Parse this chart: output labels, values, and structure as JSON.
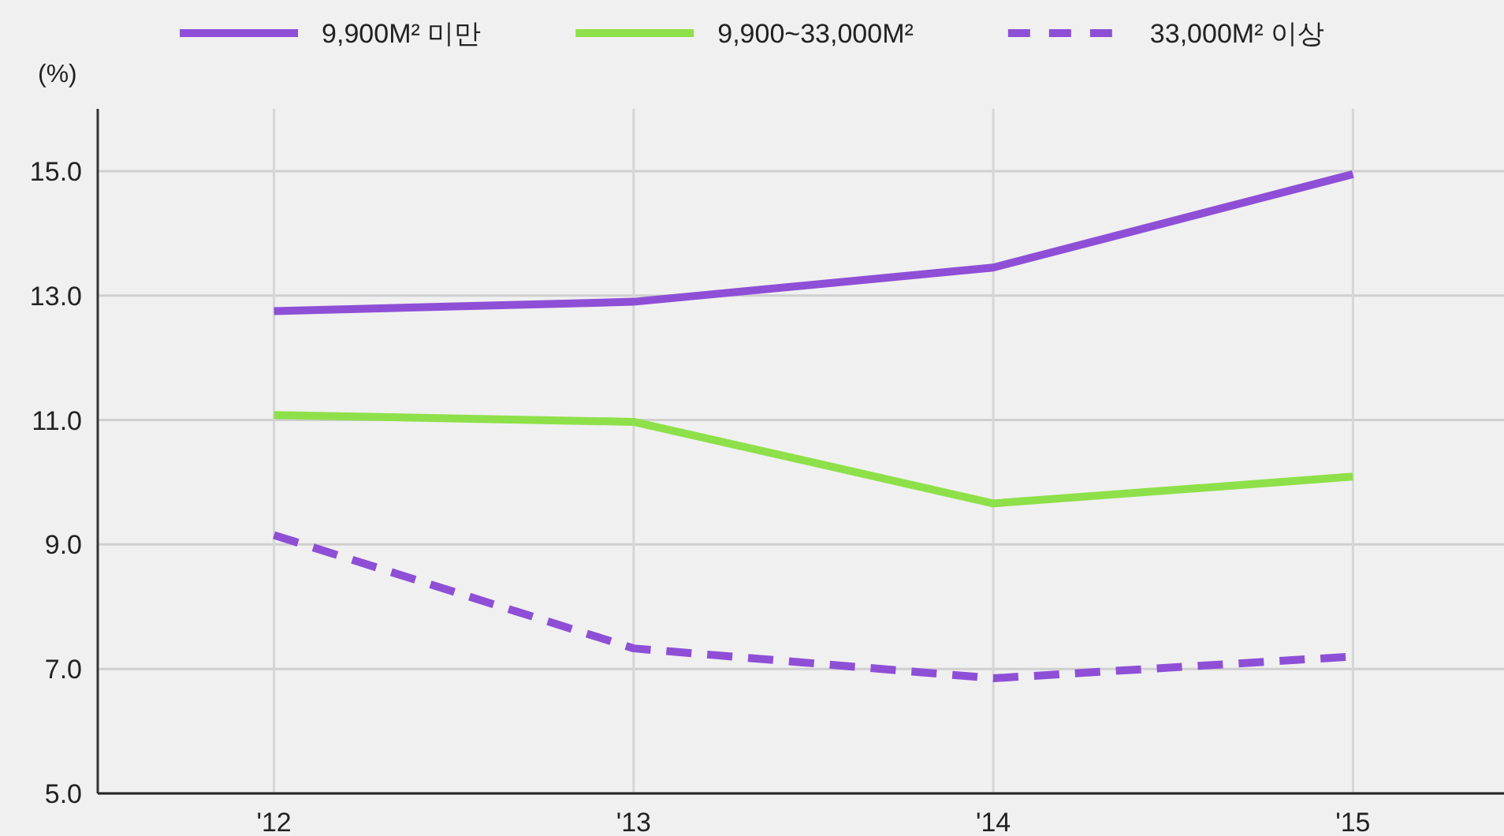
{
  "chart_data": {
    "type": "line",
    "ylabel": "(%)",
    "categories": [
      "'12",
      "'13",
      "'14",
      "'15"
    ],
    "series": [
      {
        "name": "9,900M² 미만",
        "color": "#8e4fd6",
        "line_style": "solid",
        "values": [
          12.75,
          12.9,
          13.45,
          14.95
        ]
      },
      {
        "name": "9,900~33,000M²",
        "color": "#8ee04a",
        "line_style": "solid",
        "values": [
          11.08,
          10.97,
          9.66,
          10.09
        ]
      },
      {
        "name": "33,000M² 이상",
        "color": "#8e4fd6",
        "line_style": "dashed",
        "values": [
          9.15,
          7.33,
          6.85,
          7.2
        ]
      }
    ],
    "ylim": [
      5,
      16
    ],
    "yticks": [
      {
        "value": 5,
        "label": "5.0"
      },
      {
        "value": 7,
        "label": "7.0"
      },
      {
        "value": 9,
        "label": "9.0"
      },
      {
        "value": 11,
        "label": "11.0"
      },
      {
        "value": 13,
        "label": "13.0"
      },
      {
        "value": 15,
        "label": "15.0"
      }
    ],
    "grid": true,
    "legend": "top"
  }
}
